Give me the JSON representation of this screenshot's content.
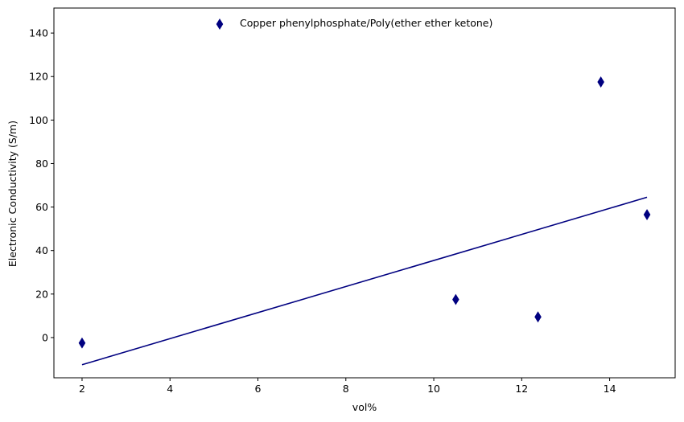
{
  "chart_data": {
    "type": "scatter",
    "title": "",
    "xlabel": "vol%",
    "ylabel": "Electronic Conductivity (S/m)",
    "xlim": [
      1.36,
      15.49
    ],
    "ylim": [
      -18.5,
      151.5
    ],
    "xticks": [
      2,
      4,
      6,
      8,
      10,
      12,
      14
    ],
    "yticks": [
      0,
      20,
      40,
      60,
      80,
      100,
      120,
      140
    ],
    "grid": false,
    "legend_position": "top-center",
    "series": [
      {
        "name": "Copper phenylphosphate/Poly(ether ether ketone)",
        "marker": "thin-diamond",
        "color": "#000080",
        "x": [
          2.0,
          10.5,
          12.37,
          13.8,
          14.85
        ],
        "y": [
          -2.5,
          17.5,
          9.5,
          117.5,
          56.5
        ]
      }
    ],
    "fit_line": {
      "color": "#000080",
      "x": [
        2.0,
        14.85
      ],
      "y": [
        -12.5,
        64.5
      ]
    }
  }
}
